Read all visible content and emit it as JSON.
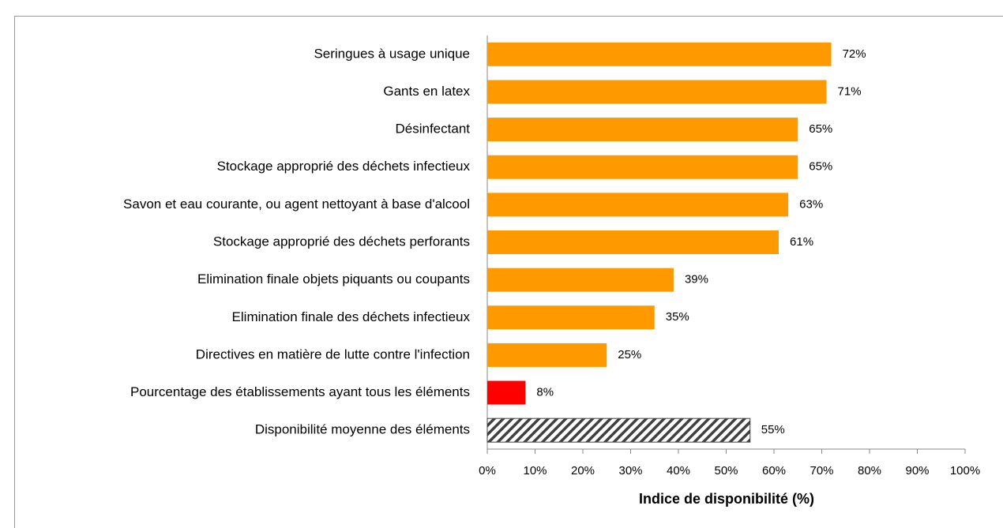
{
  "chart_data": {
    "type": "barh",
    "categories": [
      "Seringues à usage unique",
      "Gants en latex",
      "Désinfectant",
      "Stockage approprié des déchets infectieux",
      "Savon et eau courante, ou agent nettoyant à base d'alcool",
      "Stockage approprié des déchets perforants",
      "Elimination finale objets piquants ou coupants",
      "Elimination finale des déchets infectieux",
      "Directives en matière de lutte contre l'infection",
      "Pourcentage des établissements ayant tous les éléments",
      "Disponibilité moyenne des éléments"
    ],
    "values": [
      72,
      71,
      65,
      65,
      63,
      61,
      39,
      35,
      25,
      8,
      55
    ],
    "value_labels": [
      "72%",
      "71%",
      "65%",
      "65%",
      "63%",
      "61%",
      "39%",
      "35%",
      "25%",
      "8%",
      "55%"
    ],
    "colors": [
      "#ff9900",
      "#ff9900",
      "#ff9900",
      "#ff9900",
      "#ff9900",
      "#ff9900",
      "#ff9900",
      "#ff9900",
      "#ff9900",
      "#ff0000",
      "#404040"
    ],
    "bar_styles": [
      "solid",
      "solid",
      "solid",
      "solid",
      "solid",
      "solid",
      "solid",
      "solid",
      "solid",
      "solid",
      "hatched"
    ],
    "xlabel": "Indice de disponibilité (%)",
    "xlim": [
      0,
      100
    ],
    "xticks": [
      {
        "value": 0,
        "label": "0%"
      },
      {
        "value": 10,
        "label": "10%"
      },
      {
        "value": 20,
        "label": "20%"
      },
      {
        "value": 30,
        "label": "30%"
      },
      {
        "value": 40,
        "label": "40%"
      },
      {
        "value": 50,
        "label": "50%"
      },
      {
        "value": 60,
        "label": "60%"
      },
      {
        "value": 70,
        "label": "70%"
      },
      {
        "value": 80,
        "label": "80%"
      },
      {
        "value": 90,
        "label": "90%"
      },
      {
        "value": 100,
        "label": "100%"
      }
    ],
    "grid": false
  }
}
